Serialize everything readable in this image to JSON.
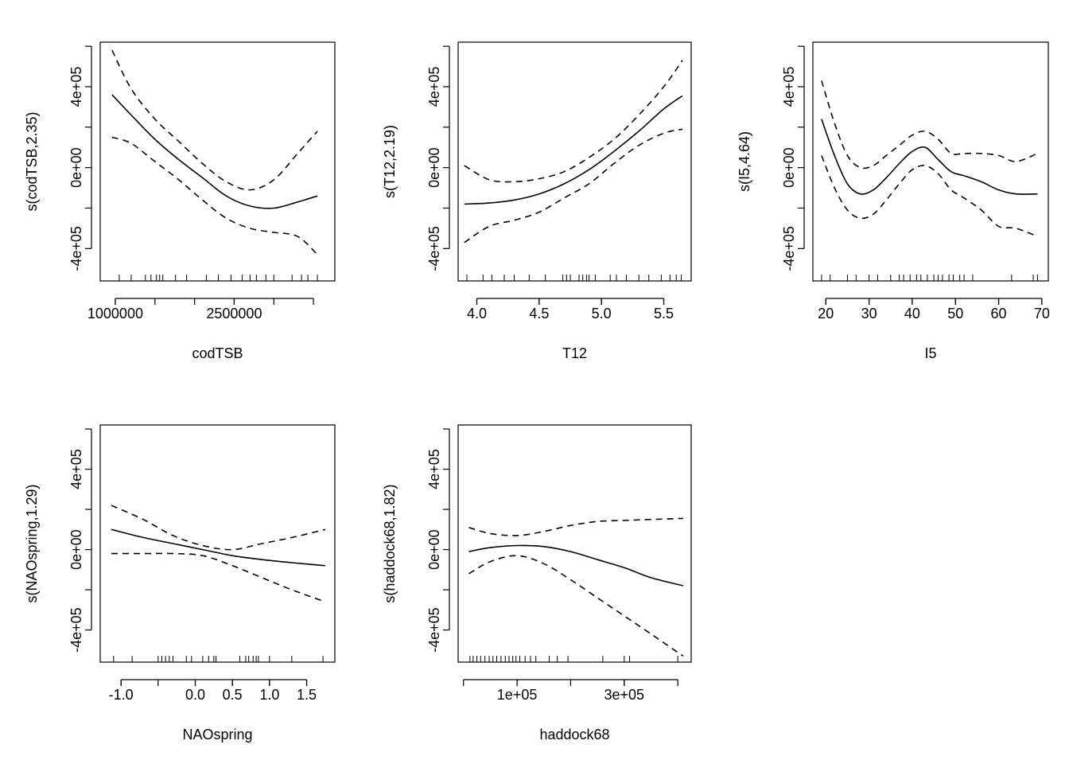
{
  "chart_data": [
    {
      "type": "line",
      "xlabel": "codTSB",
      "ylabel": "s(codTSB,2.35)",
      "x_ticks": [
        1000000,
        2500000
      ],
      "x_tick_labels": [
        "1000000",
        "2500000"
      ],
      "x_minor_ticks": [
        1000000,
        1500000,
        2000000,
        2500000,
        3000000,
        3500000
      ],
      "xlim": [
        810000,
        3770000
      ],
      "y_ticks": [
        -400000,
        -200000,
        0,
        200000,
        400000,
        600000
      ],
      "y_tick_labels": [
        "-4e+05",
        "",
        "0e+00",
        "",
        "4e+05",
        ""
      ],
      "ylim": [
        -560000,
        620000
      ],
      "series": [
        {
          "role": "fit",
          "style": "solid",
          "x": [
            960000,
            1200000,
            1500000,
            1800000,
            2100000,
            2400000,
            2700000,
            3000000,
            3300000,
            3550000
          ],
          "values": [
            360000,
            260000,
            140000,
            40000,
            -50000,
            -140000,
            -190000,
            -200000,
            -170000,
            -140000
          ]
        },
        {
          "role": "upper",
          "style": "dashed",
          "x": [
            960000,
            1200000,
            1500000,
            1800000,
            2100000,
            2400000,
            2700000,
            3000000,
            3300000,
            3550000
          ],
          "values": [
            580000,
            390000,
            240000,
            130000,
            20000,
            -70000,
            -110000,
            -60000,
            70000,
            180000
          ]
        },
        {
          "role": "lower",
          "style": "dashed",
          "x": [
            960000,
            1200000,
            1500000,
            1800000,
            2100000,
            2400000,
            2700000,
            3000000,
            3300000,
            3550000
          ],
          "values": [
            150000,
            120000,
            30000,
            -60000,
            -160000,
            -250000,
            -300000,
            -320000,
            -340000,
            -430000
          ]
        }
      ],
      "rug": [
        1050000,
        1200000,
        1380000,
        1450000,
        1520000,
        1560000,
        1600000,
        1760000,
        1900000,
        2150000,
        2300000,
        2460000,
        2600000,
        2700000,
        2780000,
        2900000,
        3000000,
        3230000,
        3350000,
        3430000,
        3550000
      ]
    },
    {
      "type": "line",
      "xlabel": "T12",
      "ylabel": "s(T12,2.19)",
      "x_ticks": [
        4.0,
        4.5,
        5.0,
        5.5
      ],
      "x_tick_labels": [
        "4.0",
        "4.5",
        "5.0",
        "5.5"
      ],
      "xlim": [
        3.85,
        5.72
      ],
      "y_ticks": [
        -400000,
        -200000,
        0,
        200000,
        400000,
        600000
      ],
      "y_tick_labels": [
        "-4e+05",
        "",
        "0e+00",
        "",
        "4e+05",
        ""
      ],
      "ylim": [
        -560000,
        620000
      ],
      "series": [
        {
          "role": "fit",
          "style": "solid",
          "x": [
            3.9,
            4.1,
            4.3,
            4.5,
            4.7,
            4.9,
            5.1,
            5.3,
            5.5,
            5.65
          ],
          "values": [
            -180000,
            -175000,
            -160000,
            -130000,
            -80000,
            -10000,
            80000,
            180000,
            290000,
            355000
          ]
        },
        {
          "role": "upper",
          "style": "dashed",
          "x": [
            3.9,
            4.1,
            4.3,
            4.5,
            4.7,
            4.9,
            5.1,
            5.3,
            5.5,
            5.65
          ],
          "values": [
            10000,
            -60000,
            -70000,
            -55000,
            -20000,
            50000,
            140000,
            260000,
            400000,
            530000
          ]
        },
        {
          "role": "lower",
          "style": "dashed",
          "x": [
            3.9,
            4.1,
            4.3,
            4.5,
            4.7,
            4.9,
            5.1,
            5.3,
            5.5,
            5.65
          ],
          "values": [
            -370000,
            -290000,
            -260000,
            -220000,
            -150000,
            -80000,
            20000,
            110000,
            170000,
            190000
          ]
        }
      ],
      "rug": [
        3.92,
        4.05,
        4.12,
        4.22,
        4.3,
        4.42,
        4.55,
        4.69,
        4.72,
        4.75,
        4.82,
        4.85,
        4.88,
        4.9,
        4.95,
        5.07,
        5.12,
        5.2,
        5.3,
        5.38,
        5.48,
        5.55,
        5.6,
        5.64
      ]
    },
    {
      "type": "line",
      "xlabel": "I5",
      "ylabel": "s(I5,4.64)",
      "x_ticks": [
        20,
        30,
        40,
        50,
        60,
        70
      ],
      "x_tick_labels": [
        "20",
        "30",
        "40",
        "50",
        "60",
        "70"
      ],
      "xlim": [
        17,
        71.5
      ],
      "y_ticks": [
        -400000,
        -200000,
        0,
        200000,
        400000,
        600000
      ],
      "y_tick_labels": [
        "-4e+05",
        "",
        "0e+00",
        "",
        "4e+05",
        ""
      ],
      "ylim": [
        -560000,
        620000
      ],
      "series": [
        {
          "role": "fit",
          "style": "solid",
          "x": [
            19,
            22,
            25,
            28,
            31,
            34,
            37,
            40,
            43,
            46,
            49,
            52,
            56,
            60,
            64,
            69
          ],
          "values": [
            240000,
            60000,
            -80000,
            -130000,
            -110000,
            -50000,
            20000,
            80000,
            100000,
            40000,
            -20000,
            -40000,
            -70000,
            -110000,
            -130000,
            -130000
          ]
        },
        {
          "role": "upper",
          "style": "dashed",
          "x": [
            19,
            22,
            25,
            28,
            31,
            34,
            37,
            40,
            43,
            46,
            49,
            52,
            56,
            60,
            64,
            69
          ],
          "values": [
            430000,
            220000,
            60000,
            0,
            10000,
            60000,
            110000,
            160000,
            180000,
            140000,
            70000,
            70000,
            70000,
            60000,
            30000,
            70000
          ]
        },
        {
          "role": "lower",
          "style": "dashed",
          "x": [
            19,
            22,
            25,
            28,
            31,
            34,
            37,
            40,
            43,
            46,
            49,
            52,
            56,
            60,
            64,
            69
          ],
          "values": [
            60000,
            -100000,
            -210000,
            -250000,
            -230000,
            -160000,
            -80000,
            -10000,
            10000,
            -30000,
            -110000,
            -150000,
            -210000,
            -290000,
            -300000,
            -340000
          ]
        }
      ],
      "rug": [
        19,
        21,
        25,
        27,
        30,
        32,
        35,
        37,
        38,
        39.5,
        41,
        42,
        43.5,
        45,
        46,
        47,
        48.5,
        49.5,
        51,
        52,
        54,
        63,
        68,
        69
      ]
    },
    {
      "type": "line",
      "xlabel": "NAOspring",
      "ylabel": "s(NAOspring,1.29)",
      "x_ticks": [
        -1.0,
        0.0,
        0.5,
        1.0,
        1.5
      ],
      "x_tick_labels": [
        "-1.0",
        "0.0",
        "0.5",
        "1.0",
        "1.5"
      ],
      "x_minor_ticks": [
        -1.0,
        -0.5,
        0.0,
        0.5,
        1.0,
        1.5
      ],
      "xlim": [
        -1.28,
        1.88
      ],
      "y_ticks": [
        -400000,
        -200000,
        0,
        200000,
        400000,
        600000
      ],
      "y_tick_labels": [
        "-4e+05",
        "",
        "0e+00",
        "",
        "4e+05",
        ""
      ],
      "ylim": [
        -560000,
        620000
      ],
      "series": [
        {
          "role": "fit",
          "style": "solid",
          "x": [
            -1.13,
            -0.7,
            -0.3,
            0.1,
            0.5,
            0.9,
            1.3,
            1.75
          ],
          "values": [
            100000,
            60000,
            30000,
            0,
            -30000,
            -50000,
            -65000,
            -80000
          ]
        },
        {
          "role": "upper",
          "style": "dashed",
          "x": [
            -1.13,
            -0.7,
            -0.3,
            0.1,
            0.5,
            0.9,
            1.3,
            1.75
          ],
          "values": [
            220000,
            150000,
            70000,
            20000,
            0,
            30000,
            60000,
            100000
          ]
        },
        {
          "role": "lower",
          "style": "dashed",
          "x": [
            -1.13,
            -0.7,
            -0.3,
            0.1,
            0.5,
            0.9,
            1.3,
            1.75
          ],
          "values": [
            -20000,
            -20000,
            -20000,
            -30000,
            -80000,
            -140000,
            -200000,
            -260000
          ]
        }
      ],
      "rug": [
        -1.1,
        -0.85,
        -0.5,
        -0.45,
        -0.4,
        -0.35,
        -0.3,
        -0.12,
        -0.05,
        0.1,
        0.18,
        0.25,
        0.28,
        0.6,
        0.68,
        0.72,
        0.78,
        0.82,
        0.85,
        1.0,
        1.3,
        1.72
      ]
    },
    {
      "type": "line",
      "xlabel": "haddock68",
      "ylabel": "s(haddock68,1.82)",
      "x_ticks": [
        100000,
        300000
      ],
      "x_tick_labels": [
        "1e+05",
        "3e+05"
      ],
      "x_minor_ticks": [
        0,
        100000,
        200000,
        300000,
        400000
      ],
      "xlim": [
        -10000,
        425000
      ],
      "y_ticks": [
        -400000,
        -200000,
        0,
        200000,
        400000,
        600000
      ],
      "y_tick_labels": [
        "-4e+05",
        "",
        "0e+00",
        "",
        "4e+05",
        ""
      ],
      "ylim": [
        -560000,
        620000
      ],
      "series": [
        {
          "role": "fit",
          "style": "solid",
          "x": [
            10000,
            50000,
            100000,
            150000,
            200000,
            250000,
            300000,
            350000,
            410000
          ],
          "values": [
            -10000,
            10000,
            20000,
            15000,
            -10000,
            -50000,
            -90000,
            -140000,
            -180000
          ]
        },
        {
          "role": "upper",
          "style": "dashed",
          "x": [
            10000,
            50000,
            100000,
            150000,
            200000,
            250000,
            300000,
            350000,
            410000
          ],
          "values": [
            110000,
            80000,
            70000,
            90000,
            120000,
            140000,
            145000,
            150000,
            155000
          ]
        },
        {
          "role": "lower",
          "style": "dashed",
          "x": [
            10000,
            50000,
            100000,
            150000,
            200000,
            250000,
            300000,
            350000,
            410000
          ],
          "values": [
            -120000,
            -60000,
            -30000,
            -70000,
            -150000,
            -240000,
            -330000,
            -420000,
            -530000
          ]
        }
      ],
      "rug": [
        12000,
        18000,
        25000,
        32000,
        40000,
        48000,
        55000,
        62000,
        70000,
        78000,
        85000,
        92000,
        98000,
        105000,
        115000,
        125000,
        135000,
        160000,
        175000,
        195000,
        260000,
        300000,
        310000,
        400000
      ]
    }
  ]
}
